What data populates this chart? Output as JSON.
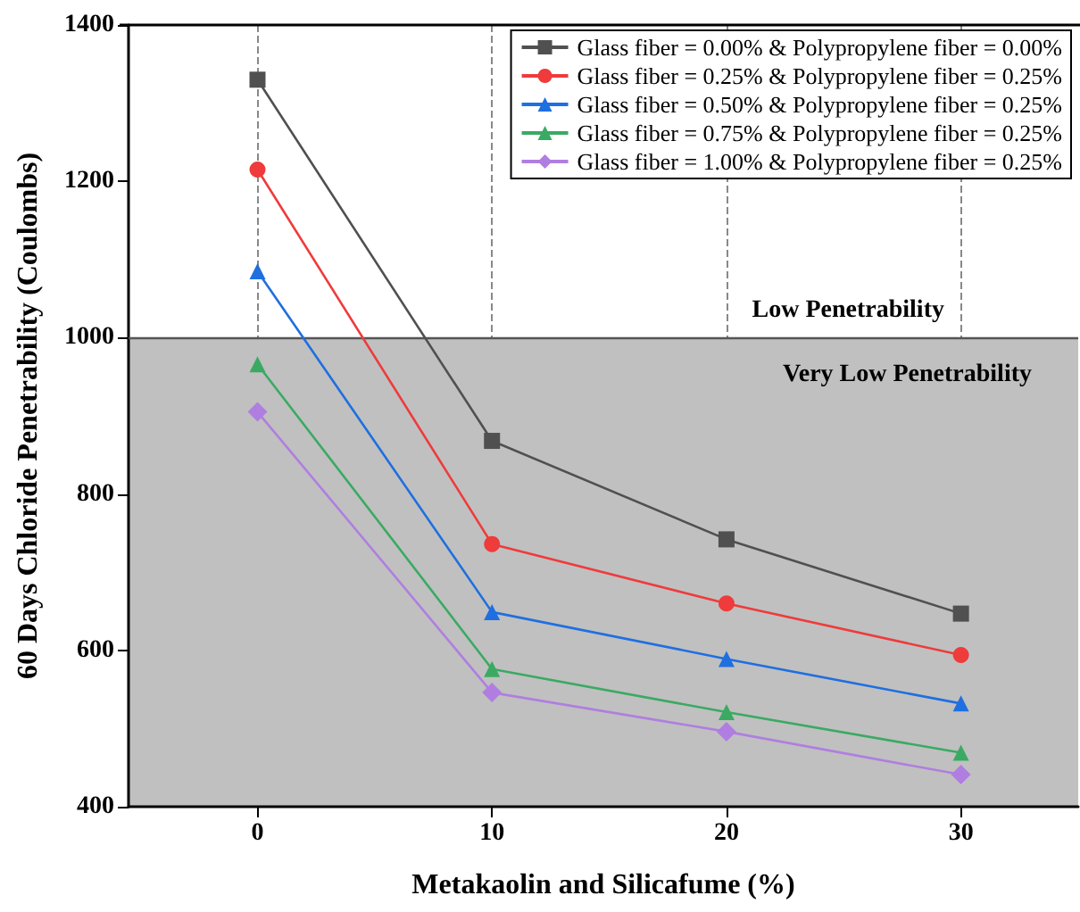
{
  "chart_data": {
    "type": "line",
    "xlabel": "Metakaolin and Silicafume (%)",
    "ylabel": "60 Days Chloride Penetrability (Coulombs)",
    "x": [
      0,
      10,
      20,
      30
    ],
    "series": [
      {
        "name": "Glass fiber = 0.00% & Polypropylene fiber = 0.00%",
        "color": "#505050",
        "marker": "square",
        "values": [
          1330,
          868,
          742,
          647
        ]
      },
      {
        "name": "Glass fiber = 0.25% & Polypropylene fiber = 0.25%",
        "color": "#ef3b3b",
        "marker": "circle",
        "values": [
          1215,
          736,
          660,
          594
        ]
      },
      {
        "name": "Glass fiber = 0.50% & Polypropylene fiber = 0.25%",
        "color": "#1f6fe0",
        "marker": "triangle",
        "values": [
          1085,
          649,
          589,
          532
        ]
      },
      {
        "name": "Glass fiber = 0.75% & Polypropylene fiber = 0.25%",
        "color": "#3aaa63",
        "marker": "triangle",
        "values": [
          966,
          576,
          521,
          469
        ]
      },
      {
        "name": "Glass fiber = 1.00% & Polypropylene fiber = 0.25%",
        "color": "#b07ee0",
        "marker": "diamond",
        "values": [
          905,
          546,
          496,
          441
        ]
      }
    ],
    "xlim": [
      -5.5,
      35
    ],
    "xticks": [
      0,
      10,
      20,
      30
    ],
    "ylim": [
      400,
      1400
    ],
    "yticks": [
      400,
      600,
      800,
      1000,
      1200,
      1400
    ],
    "grid": "x",
    "legend": "top right",
    "bands": [
      {
        "axis": "y",
        "from": 400,
        "to": 1000,
        "color": "#c0c0c0",
        "label": "Very Low Penetrability"
      }
    ],
    "ref_lines": [
      {
        "axis": "y",
        "value": 1000,
        "color": "#555555",
        "label": "Low Penetrability"
      }
    ]
  }
}
